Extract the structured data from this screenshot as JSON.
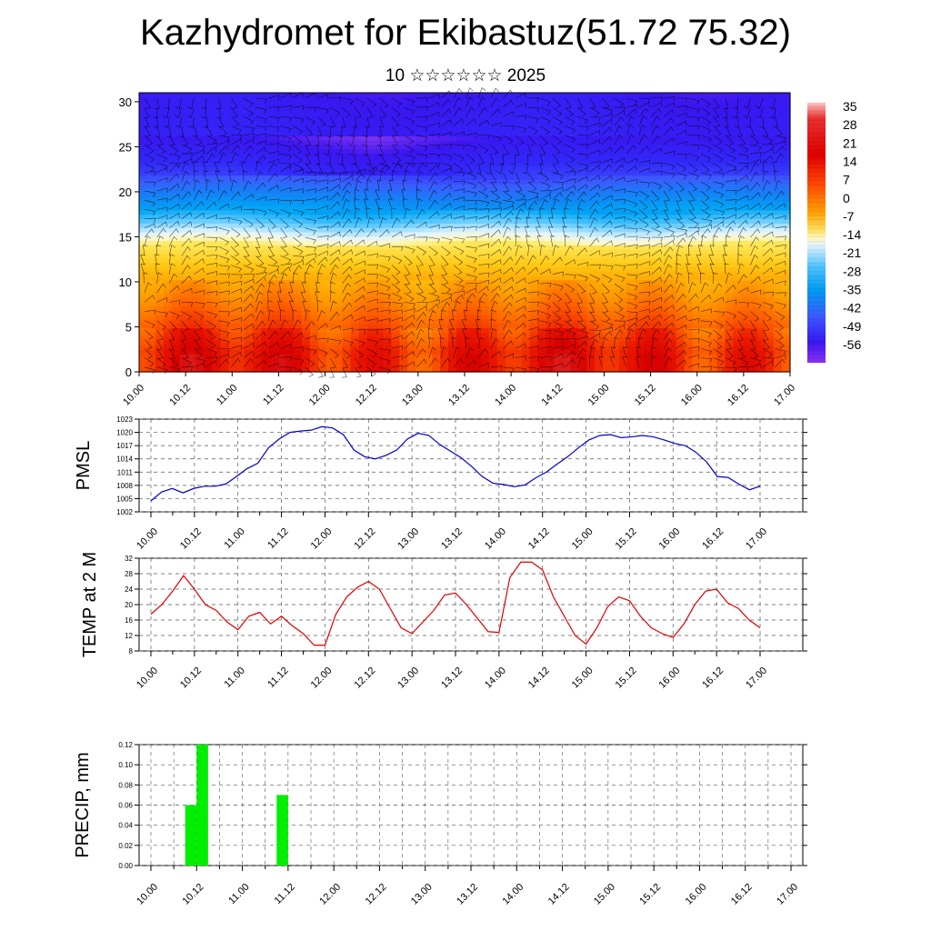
{
  "header": {
    "title": "Kazhydromet for Ekibastuz(51.72 75.32)",
    "subtitle": "10 ☆☆☆☆☆☆ 2025"
  },
  "chart_data": [
    {
      "type": "heatmap",
      "xlabel": "",
      "ylabel": "",
      "x_ticks": [
        "10.00",
        "10.12",
        "11.00",
        "11.12",
        "12.00",
        "12.12",
        "13.00",
        "13.12",
        "14.00",
        "14.12",
        "15.00",
        "15.12",
        "16.00",
        "16.12",
        "17.00"
      ],
      "y_ticks": [
        0,
        5,
        10,
        15,
        20,
        25,
        30
      ],
      "ylim": [
        0,
        31
      ],
      "colorbar": {
        "labels": [
          35,
          28,
          21,
          14,
          7,
          0,
          -7,
          -14,
          -21,
          -28,
          -35,
          -42,
          -49,
          -56
        ],
        "range": [
          -63,
          38
        ]
      },
      "overlay": "wind barbs"
    },
    {
      "type": "line",
      "ylabel": "PMSL",
      "series_color": "#0000cc",
      "ylim": [
        1002,
        1023
      ],
      "y_ticks": [
        1002,
        1005,
        1008,
        1011,
        1014,
        1017,
        1020,
        1023
      ],
      "x_ticks": [
        "10.00",
        "10.12",
        "11.00",
        "11.12",
        "12.00",
        "12.12",
        "13.00",
        "13.12",
        "14.00",
        "14.12",
        "15.00",
        "15.12",
        "16.00",
        "16.12",
        "17.00"
      ],
      "values": [
        1004.5,
        1006.5,
        1007.3,
        1006.3,
        1007.3,
        1007.8,
        1007.8,
        1008.3,
        1010,
        1011.8,
        1013,
        1016.5,
        1018.5,
        1020,
        1020.3,
        1020.5,
        1021.3,
        1021,
        1019.5,
        1016,
        1014.5,
        1014,
        1014.8,
        1016,
        1018.5,
        1019.8,
        1019.3,
        1017.3,
        1015.8,
        1014.3,
        1012.3,
        1010,
        1008.5,
        1008.2,
        1007.7,
        1008.1,
        1009.7,
        1011,
        1012.8,
        1014.5,
        1016.5,
        1018.3,
        1019.3,
        1019.5,
        1018.8,
        1019,
        1019.3,
        1019,
        1018.3,
        1017.5,
        1017,
        1015.5,
        1013.3,
        1010,
        1009.8,
        1008.3,
        1007,
        1007.8
      ]
    },
    {
      "type": "line",
      "ylabel": "TEMP at 2 M",
      "series_color": "#dd0000",
      "ylim": [
        8,
        32
      ],
      "y_ticks": [
        8,
        12,
        16,
        20,
        24,
        28,
        32
      ],
      "x_ticks": [
        "10.00",
        "10.12",
        "11.00",
        "11.12",
        "12.00",
        "12.12",
        "13.00",
        "13.12",
        "14.00",
        "14.12",
        "15.00",
        "15.12",
        "16.00",
        "16.12",
        "17.00"
      ],
      "values": [
        17.5,
        20,
        23.5,
        27.5,
        24,
        20,
        18.5,
        15.5,
        13.5,
        17,
        18,
        15,
        17,
        14.5,
        12.5,
        9.5,
        9.5,
        17.5,
        22,
        24.5,
        26,
        24,
        19,
        14,
        12.5,
        15.5,
        18.5,
        22.5,
        23,
        20,
        16.5,
        13,
        12.8,
        27,
        31,
        31,
        29,
        22,
        17,
        12,
        9.8,
        14,
        19.5,
        22,
        21,
        17,
        14,
        12.5,
        11.5,
        15,
        20,
        23.5,
        24,
        20.5,
        19,
        16,
        14
      ]
    },
    {
      "type": "bar",
      "ylabel": "PRECIP, mm",
      "bar_color": "#00ee00",
      "ylim": [
        0,
        0.12
      ],
      "y_ticks": [
        "0.00",
        "0.02",
        "0.04",
        "0.06",
        "0.08",
        "0.10",
        "0.12"
      ],
      "x_ticks": [
        "10.00",
        "10.12",
        "11.00",
        "11.12",
        "12.00",
        "12.12",
        "13.00",
        "13.12",
        "14.00",
        "14.12",
        "15.00",
        "15.12",
        "16.00",
        "16.12",
        "17.00"
      ],
      "bars": [
        {
          "x_start_hours": 9,
          "x_end_hours": 12,
          "value": 0.06
        },
        {
          "x_start_hours": 12,
          "x_end_hours": 15,
          "value": 0.12
        },
        {
          "x_start_hours": 33,
          "x_end_hours": 36,
          "value": 0.07
        }
      ]
    }
  ]
}
